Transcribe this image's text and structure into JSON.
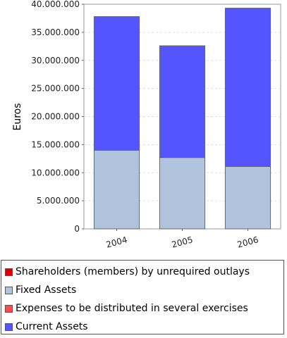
{
  "chart_data": {
    "type": "bar",
    "stacked": true,
    "ylabel": "Euros",
    "xlabel": "",
    "ylim": [
      0,
      40000000
    ],
    "yticks": [
      {
        "value": 0,
        "label": "0"
      },
      {
        "value": 5000000,
        "label": "5.000.000"
      },
      {
        "value": 10000000,
        "label": "10.000.000"
      },
      {
        "value": 15000000,
        "label": "15.000.000"
      },
      {
        "value": 20000000,
        "label": "20.000.000"
      },
      {
        "value": 25000000,
        "label": "25.000.000"
      },
      {
        "value": 30000000,
        "label": "30.000.000"
      },
      {
        "value": 35000000,
        "label": "35.000.000"
      },
      {
        "value": 40000000,
        "label": "40.000.000"
      }
    ],
    "categories": [
      "2004",
      "2005",
      "2006"
    ],
    "grid": true,
    "legend_position": "bottom",
    "series": [
      {
        "name": "Shareholders (members) by unrequired outlays",
        "color": "#dd0000",
        "values": [
          0,
          0,
          0
        ]
      },
      {
        "name": "Fixed Assets",
        "color": "#b0c4de",
        "values": [
          14000000,
          12700000,
          11100000
        ]
      },
      {
        "name": "Expenses to be distributed in several exercises",
        "color": "#f05050",
        "values": [
          0,
          0,
          0
        ]
      },
      {
        "name": "Current Assets",
        "color": "#5555ff",
        "values": [
          23800000,
          19900000,
          28200000
        ]
      }
    ]
  }
}
